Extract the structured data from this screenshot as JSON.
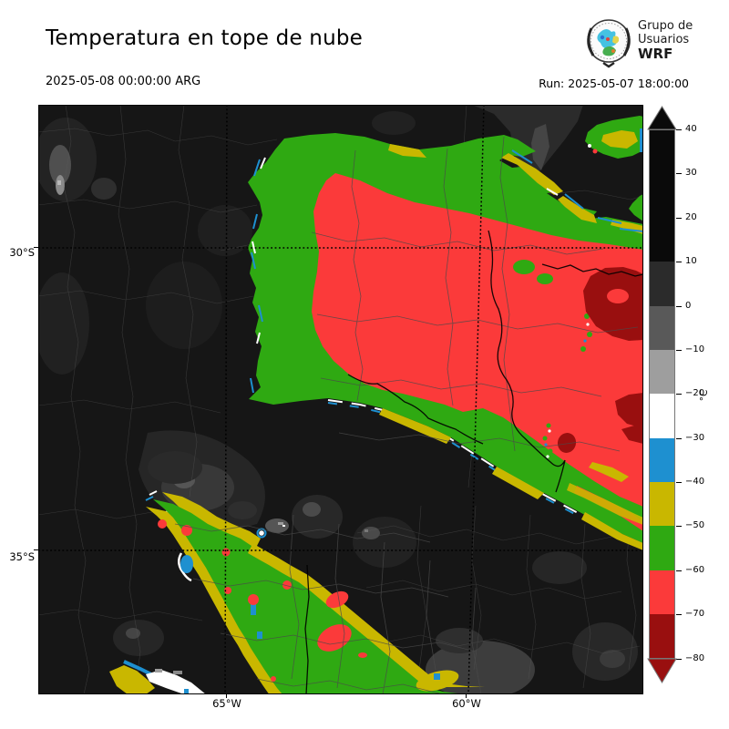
{
  "header": {
    "title": "Temperatura en tope de nube",
    "valid_time": "2025-05-08 00:00:00 ARG",
    "run_label": "Run: 2025-05-07 18:00:00"
  },
  "logo": {
    "line1": "Grupo de",
    "line2": "Usuarios",
    "line3": "WRF"
  },
  "axes": {
    "lat_labels": [
      "30°S",
      "35°S"
    ],
    "lon_labels": [
      "65°W",
      "60°W"
    ]
  },
  "colorbar": {
    "unit": "°C",
    "tick_values": [
      40,
      30,
      20,
      10,
      0,
      -10,
      -20,
      -30,
      -40,
      -50,
      -60,
      -70,
      -80
    ],
    "tick_labels": [
      "40",
      "30",
      "20",
      "10",
      "0",
      "−10",
      "−20",
      "−30",
      "−40",
      "−50",
      "−60",
      "−70",
      "−80"
    ],
    "segments": [
      {
        "from": 40,
        "to": 10,
        "color": "#0a0a0a"
      },
      {
        "from": 10,
        "to": 0,
        "color": "#2b2b2b"
      },
      {
        "from": 0,
        "to": -10,
        "color": "#595959"
      },
      {
        "from": -10,
        "to": -20,
        "color": "#9e9e9e"
      },
      {
        "from": -20,
        "to": -30,
        "color": "#ffffff"
      },
      {
        "from": -30,
        "to": -40,
        "color": "#1e90d0"
      },
      {
        "from": -40,
        "to": -50,
        "color": "#c9b700"
      },
      {
        "from": -50,
        "to": -60,
        "color": "#2fa912"
      },
      {
        "from": -60,
        "to": -70,
        "color": "#fb3a3a"
      },
      {
        "from": -70,
        "to": -80,
        "color": "#990f0f"
      }
    ]
  },
  "colors": {
    "bg": "#161616",
    "green": "#2fa912",
    "red": "#fb3a3a",
    "darkred": "#990f0f",
    "yellow": "#c9b700",
    "blue": "#1e90d0",
    "white": "#ffffff",
    "black": "#0a0a0a"
  },
  "chart_data": {
    "type": "heatmap",
    "title": "Temperatura en tope de nube",
    "valid_time": "2025-05-08 00:00:00 ARG",
    "run_time": "Run: 2025-05-07 18:00:00",
    "unit": "°C",
    "colorbar_ticks": [
      40,
      30,
      20,
      10,
      0,
      -10,
      -20,
      -30,
      -40,
      -50,
      -60,
      -70,
      -80
    ],
    "colorbar_stops": [
      {
        "range": "40 to 10",
        "color": "#0a0a0a"
      },
      {
        "range": "10 to 0",
        "color": "#2b2b2b"
      },
      {
        "range": "0 to -10",
        "color": "#595959"
      },
      {
        "range": "-10 to -20",
        "color": "#9e9e9e"
      },
      {
        "range": "-20 to -30",
        "color": "#ffffff"
      },
      {
        "range": "-30 to -40",
        "color": "#1e90d0"
      },
      {
        "range": "-40 to -50",
        "color": "#c9b700"
      },
      {
        "range": "-50 to -60",
        "color": "#2fa912"
      },
      {
        "range": "-60 to -70",
        "color": "#fb3a3a"
      },
      {
        "range": "-70 to -80",
        "color": "#990f0f"
      }
    ],
    "lat_ticks": [
      "30°S",
      "35°S"
    ],
    "lon_ticks": [
      "65°W",
      "60°W"
    ],
    "legend_position": "right"
  }
}
